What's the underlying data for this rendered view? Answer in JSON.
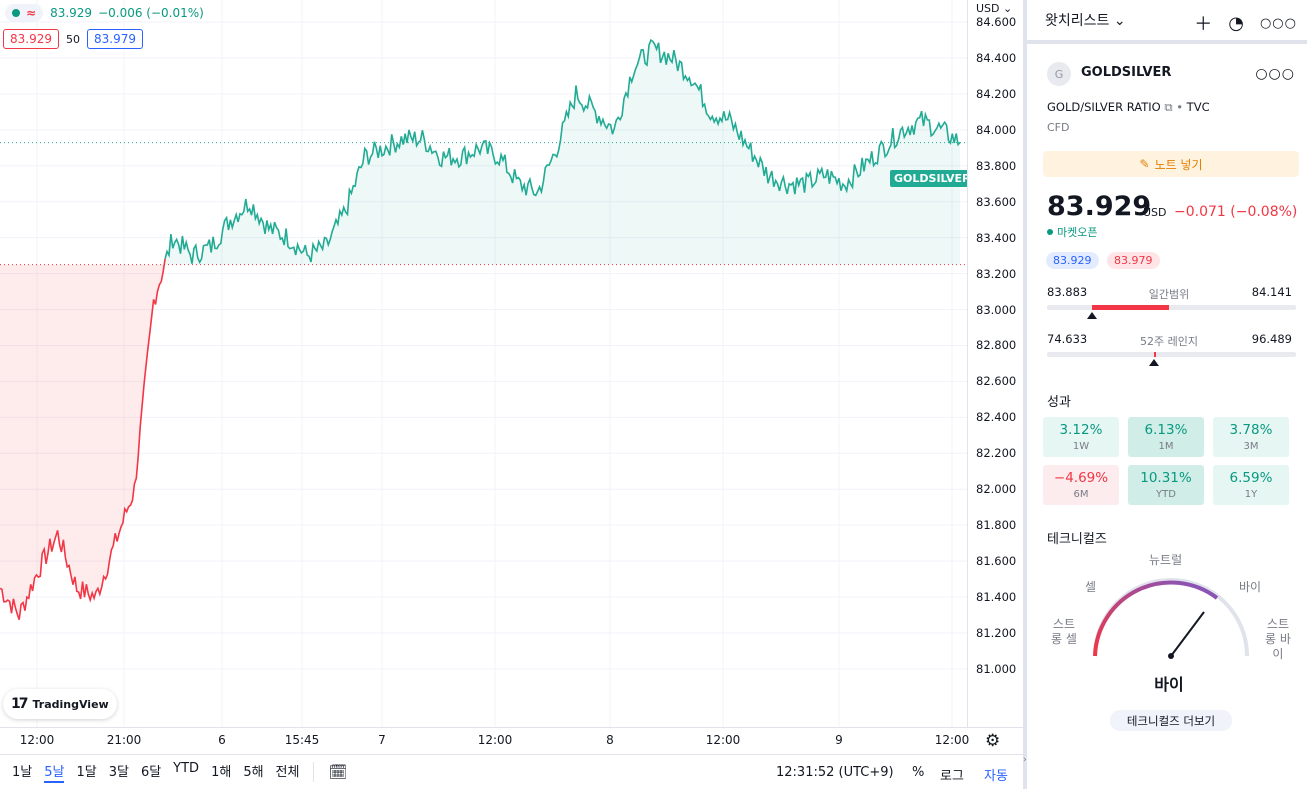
{
  "legend": {
    "price": "83.929",
    "change": "−0.006 (−0.01%)",
    "bid": "83.929",
    "spread": "50",
    "ask": "83.979",
    "series_tag": "GOLDSILVER"
  },
  "axis": {
    "unit": "USD",
    "price_ticks": [
      "84.600",
      "84.400",
      "84.200",
      "84.000",
      "83.800",
      "83.600",
      "83.400",
      "83.200",
      "83.000",
      "82.800",
      "82.600",
      "82.400",
      "82.200",
      "82.000",
      "81.800",
      "81.600",
      "81.400",
      "81.200",
      "81.000"
    ],
    "time_labels": [
      "12:00",
      "21:00",
      "6",
      "15:45",
      "7",
      "12:00",
      "8",
      "12:00",
      "9",
      "12:00"
    ]
  },
  "watermark": "TradingView",
  "bottom_bar": {
    "timeframes": [
      "1날",
      "5날",
      "1달",
      "3달",
      "6달",
      "YTD",
      "1해",
      "5해",
      "전체"
    ],
    "active_timeframe": "5날",
    "clock": "12:31:52 (UTC+9)",
    "percent": "%",
    "log": "로그",
    "auto": "자동"
  },
  "panel": {
    "watchlist_title": "왓치리스트",
    "symbol_initial": "G",
    "symbol": "GOLDSILVER",
    "description": "GOLD/SILVER RATIO",
    "exchange": "TVC",
    "type": "CFD",
    "note_button": "노트 넣기",
    "price": "83.929",
    "currency": "USD",
    "change": "−0.071 (−0.08%)",
    "market_status": "마켓오픈",
    "bid": "83.929",
    "ask": "83.979",
    "day_range": {
      "low": "83.883",
      "high": "84.141",
      "label": "일간범위",
      "fill_start": 0.18,
      "fill_end": 0.49,
      "marker": 0.18
    },
    "week52_range": {
      "low": "74.633",
      "high": "96.489",
      "label": "52주 레인지",
      "marker": 0.43
    },
    "performance_title": "성과",
    "performance": [
      {
        "value": "3.12%",
        "label": "1W",
        "sign": "pos"
      },
      {
        "value": "6.13%",
        "label": "1M",
        "sign": "pos"
      },
      {
        "value": "3.78%",
        "label": "3M",
        "sign": "pos"
      },
      {
        "value": "−4.69%",
        "label": "6M",
        "sign": "neg"
      },
      {
        "value": "10.31%",
        "label": "YTD",
        "sign": "pos"
      },
      {
        "value": "6.59%",
        "label": "1Y",
        "sign": "pos"
      }
    ],
    "technicals_title": "테크니컬즈",
    "gauge_labels": {
      "neutral": "뉴트럴",
      "sell": "셀",
      "buy": "바이",
      "strong_sell_1": "스트",
      "strong_sell_2": "롱 셀",
      "strong_buy_1": "스트",
      "strong_buy_2": "롱 바",
      "strong_buy_3": "이"
    },
    "gauge_value": "바이",
    "more_button": "테크니컬즈 더보기"
  },
  "chart_data": {
    "type": "area",
    "ylabel": "USD",
    "ylim": [
      80.9,
      84.72
    ],
    "baseline": 83.25,
    "last_price": 83.929,
    "x": [
      0,
      2,
      4,
      6,
      8,
      10,
      12,
      14,
      16,
      18,
      20,
      22,
      24,
      26,
      28,
      30,
      32,
      34,
      36,
      38,
      40,
      42,
      44,
      46,
      48,
      50,
      52,
      54,
      56,
      58,
      60,
      62,
      64,
      66,
      68,
      70,
      72,
      74,
      76,
      78,
      80,
      82,
      84,
      86,
      88,
      90,
      92,
      94,
      96,
      98,
      100
    ],
    "values": [
      81.45,
      81.3,
      81.55,
      81.75,
      81.45,
      81.4,
      81.7,
      82.0,
      83.05,
      83.4,
      83.3,
      83.35,
      83.5,
      83.6,
      83.45,
      83.4,
      83.3,
      83.35,
      83.55,
      83.85,
      83.9,
      83.95,
      83.95,
      83.85,
      83.85,
      83.9,
      83.85,
      83.7,
      83.65,
      83.9,
      84.2,
      84.1,
      84.0,
      84.35,
      84.45,
      84.4,
      84.3,
      84.1,
      84.05,
      83.9,
      83.75,
      83.7,
      83.7,
      83.75,
      83.7,
      83.8,
      83.9,
      84.0,
      84.05,
      84.0,
      83.93
    ]
  }
}
